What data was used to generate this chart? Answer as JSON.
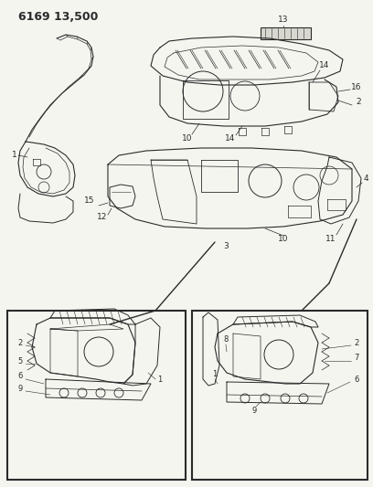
{
  "title": "6169 13,500",
  "title_fontsize": 9,
  "title_fontweight": "bold",
  "bg_color": "#f5f5f0",
  "line_color": "#2a2a2a",
  "label_fontsize": 6.5,
  "fig_width": 4.08,
  "fig_height": 5.33,
  "dpi": 100,
  "header_text": "6169 13,500"
}
